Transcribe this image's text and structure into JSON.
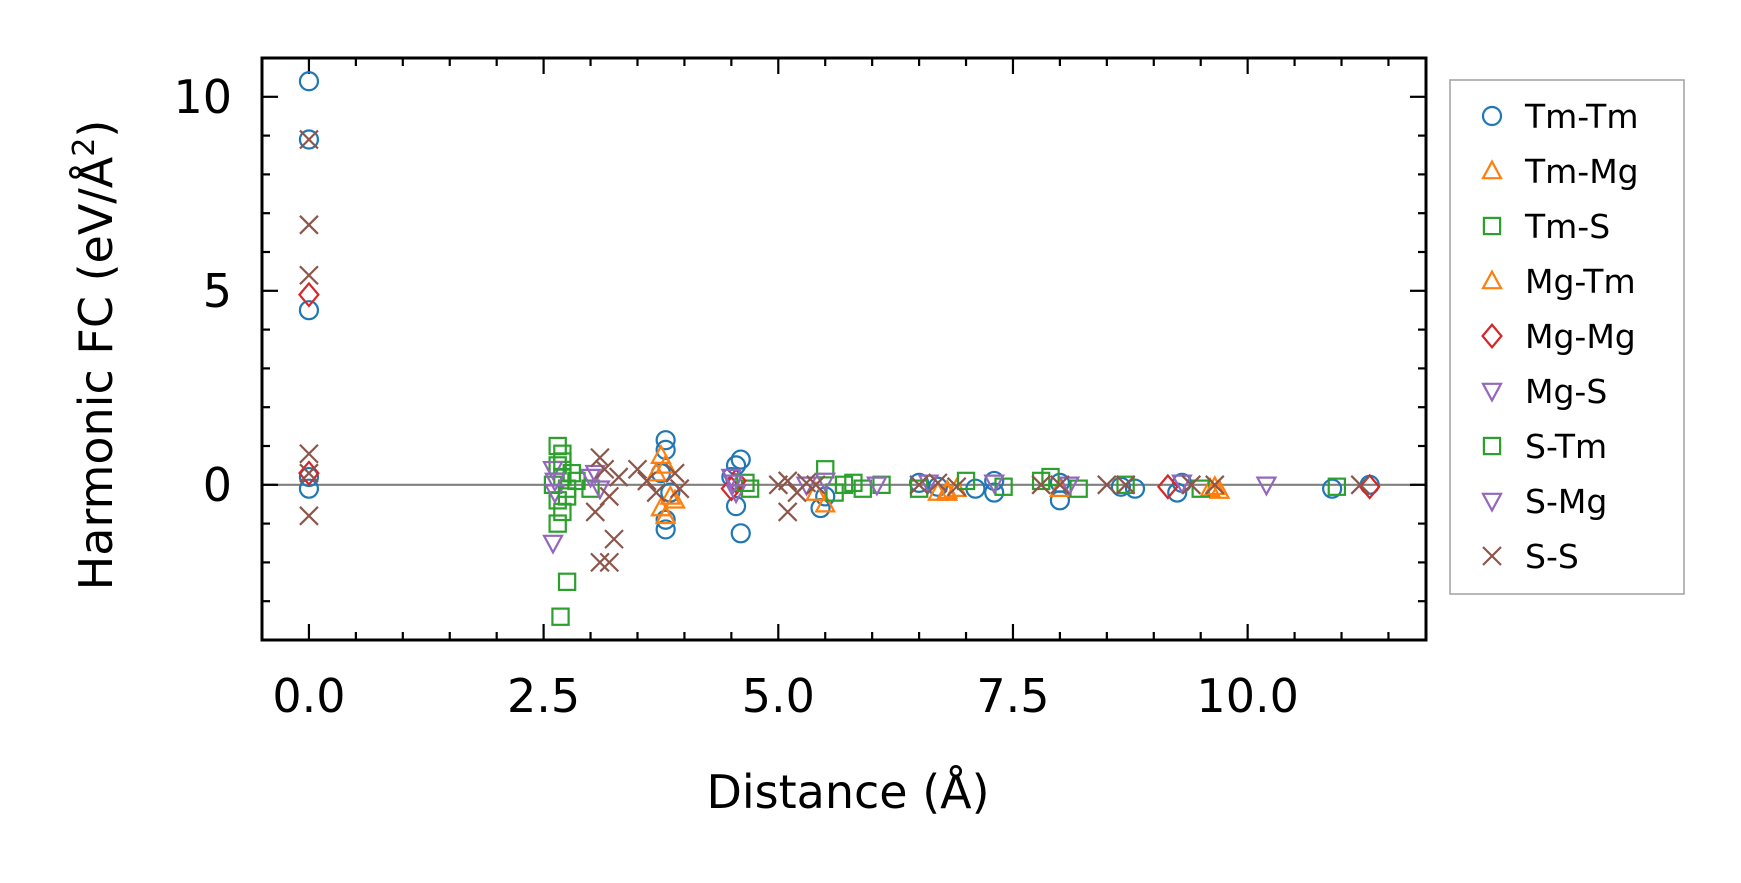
{
  "chart_data": {
    "type": "scatter",
    "title": "",
    "xlabel": "Distance (Å)",
    "ylabel_main": "Harmonic FC (eV/Å",
    "ylabel_sup": "2",
    "ylabel_close": ")",
    "xlim": [
      -0.5,
      11.9
    ],
    "ylim": [
      -4.0,
      11.0
    ],
    "xticks": [
      0.0,
      2.5,
      5.0,
      7.5,
      10.0
    ],
    "xtick_labels": [
      "0.0",
      "2.5",
      "5.0",
      "7.5",
      "10.0"
    ],
    "yticks": [
      0,
      5,
      10
    ],
    "ytick_labels": [
      "0",
      "5",
      "10"
    ],
    "zero_line": 0,
    "legend_position": "outside-right",
    "series": [
      {
        "name": "Tm-Tm",
        "color": "#1f77b4",
        "marker": "circle",
        "points": [
          [
            0,
            10.4
          ],
          [
            0,
            8.9
          ],
          [
            0,
            4.5
          ],
          [
            0,
            0.2
          ],
          [
            0,
            -0.1
          ],
          [
            3.8,
            1.15
          ],
          [
            3.8,
            0.9
          ],
          [
            3.8,
            -1.15
          ],
          [
            3.8,
            -0.9
          ],
          [
            3.75,
            0.3
          ],
          [
            3.85,
            -0.2
          ],
          [
            4.55,
            0.5
          ],
          [
            4.6,
            0.65
          ],
          [
            4.55,
            -0.55
          ],
          [
            4.6,
            -1.25
          ],
          [
            4.5,
            0.2
          ],
          [
            5.45,
            -0.6
          ],
          [
            5.5,
            -0.3
          ],
          [
            6.5,
            0.05
          ],
          [
            6.7,
            -0.05
          ],
          [
            7.1,
            -0.1
          ],
          [
            7.3,
            0.1
          ],
          [
            7.3,
            -0.2
          ],
          [
            8.0,
            -0.4
          ],
          [
            8.0,
            0.05
          ],
          [
            8.65,
            -0.05
          ],
          [
            8.8,
            -0.1
          ],
          [
            9.25,
            -0.2
          ],
          [
            9.3,
            0.05
          ],
          [
            10.9,
            -0.1
          ],
          [
            11.3,
            0
          ]
        ]
      },
      {
        "name": "Tm-Mg",
        "color": "#ff7f0e",
        "marker": "triangle-up",
        "points": [
          [
            3.75,
            0.75
          ],
          [
            3.8,
            0.5
          ],
          [
            3.8,
            -0.8
          ],
          [
            3.75,
            -0.6
          ],
          [
            3.85,
            -0.3
          ],
          [
            5.5,
            -0.5
          ],
          [
            5.4,
            -0.2
          ],
          [
            6.7,
            -0.2
          ],
          [
            6.8,
            -0.2
          ],
          [
            6.9,
            -0.1
          ],
          [
            8.0,
            -0.1
          ],
          [
            9.6,
            -0.1
          ],
          [
            9.7,
            -0.15
          ]
        ]
      },
      {
        "name": "Tm-S",
        "color": "#2ca02c",
        "marker": "square",
        "points": [
          [
            2.65,
            1.0
          ],
          [
            2.7,
            0.8
          ],
          [
            2.65,
            0.5
          ],
          [
            2.7,
            0.2
          ],
          [
            2.75,
            -0.1
          ],
          [
            2.65,
            -0.4
          ],
          [
            2.7,
            -0.7
          ],
          [
            2.65,
            -1.0
          ],
          [
            2.75,
            -2.5
          ],
          [
            2.68,
            -3.4
          ],
          [
            2.6,
            0
          ],
          [
            2.85,
            0.1
          ],
          [
            3.0,
            -0.1
          ],
          [
            4.7,
            -0.1
          ],
          [
            5.5,
            0.4
          ],
          [
            5.6,
            -0.2
          ],
          [
            5.7,
            0
          ],
          [
            5.9,
            -0.1
          ],
          [
            6.1,
            0
          ],
          [
            6.5,
            -0.1
          ],
          [
            7.0,
            0.1
          ],
          [
            7.4,
            -0.05
          ],
          [
            7.9,
            0.2
          ],
          [
            8.2,
            -0.1
          ],
          [
            9.5,
            -0.1
          ],
          [
            10.95,
            -0.05
          ]
        ]
      },
      {
        "name": "Mg-Tm",
        "color": "#ff7f0e",
        "marker": "triangle-up",
        "points": [
          [
            3.7,
            0.3
          ],
          [
            3.9,
            -0.4
          ],
          [
            6.8,
            -0.15
          ],
          [
            9.65,
            -0.05
          ]
        ]
      },
      {
        "name": "Mg-Mg",
        "color": "#d62728",
        "marker": "diamond",
        "points": [
          [
            0,
            4.9
          ],
          [
            0,
            0.3
          ],
          [
            4.5,
            -0.1
          ],
          [
            4.55,
            0.1
          ],
          [
            9.15,
            -0.05
          ],
          [
            11.3,
            -0.05
          ]
        ]
      },
      {
        "name": "Mg-S",
        "color": "#9467bd",
        "marker": "triangle-down",
        "points": [
          [
            2.6,
            0.4
          ],
          [
            2.62,
            -0.2
          ],
          [
            2.6,
            -1.5
          ],
          [
            3.0,
            0.2
          ],
          [
            3.1,
            -0.1
          ],
          [
            4.5,
            0.2
          ],
          [
            4.55,
            -0.2
          ],
          [
            5.3,
            0
          ],
          [
            5.5,
            0.1
          ],
          [
            6.05,
            0
          ],
          [
            7.3,
            0.05
          ],
          [
            8.1,
            0
          ],
          [
            10.2,
            0
          ]
        ]
      },
      {
        "name": "S-Tm",
        "color": "#2ca02c",
        "marker": "square",
        "points": [
          [
            2.7,
            0.6
          ],
          [
            2.75,
            -0.3
          ],
          [
            2.8,
            0.3
          ],
          [
            4.65,
            0.05
          ],
          [
            5.8,
            0.05
          ],
          [
            7.8,
            0.1
          ],
          [
            8.7,
            0
          ]
        ]
      },
      {
        "name": "S-Mg",
        "color": "#9467bd",
        "marker": "triangle-down",
        "points": [
          [
            2.62,
            0.1
          ],
          [
            3.05,
            0.3
          ],
          [
            4.52,
            0.05
          ],
          [
            6.6,
            0.05
          ],
          [
            9.3,
            0.05
          ]
        ]
      },
      {
        "name": "S-S",
        "color": "#8c564b",
        "marker": "x",
        "points": [
          [
            0,
            8.9
          ],
          [
            0,
            6.7
          ],
          [
            0,
            5.4
          ],
          [
            0,
            0.8
          ],
          [
            0,
            0.3
          ],
          [
            0,
            -0.8
          ],
          [
            3.1,
            0.7
          ],
          [
            3.15,
            0.4
          ],
          [
            3.05,
            -0.7
          ],
          [
            3.1,
            -2.0
          ],
          [
            3.2,
            -2.0
          ],
          [
            3.25,
            -1.4
          ],
          [
            3.2,
            -0.3
          ],
          [
            3.3,
            0.2
          ],
          [
            3.5,
            0.4
          ],
          [
            3.6,
            0.1
          ],
          [
            3.7,
            -0.2
          ],
          [
            3.9,
            0.3
          ],
          [
            3.95,
            -0.1
          ],
          [
            5.0,
            0
          ],
          [
            5.1,
            0.1
          ],
          [
            5.2,
            -0.2
          ],
          [
            5.3,
            0.05
          ],
          [
            5.1,
            -0.7
          ],
          [
            5.4,
            0
          ],
          [
            6.5,
            0
          ],
          [
            6.7,
            0.05
          ],
          [
            6.9,
            -0.05
          ],
          [
            7.8,
            0
          ],
          [
            8.0,
            0
          ],
          [
            8.5,
            0
          ],
          [
            8.7,
            0
          ],
          [
            9.4,
            0
          ],
          [
            9.65,
            0
          ],
          [
            11.2,
            0
          ]
        ]
      }
    ]
  }
}
